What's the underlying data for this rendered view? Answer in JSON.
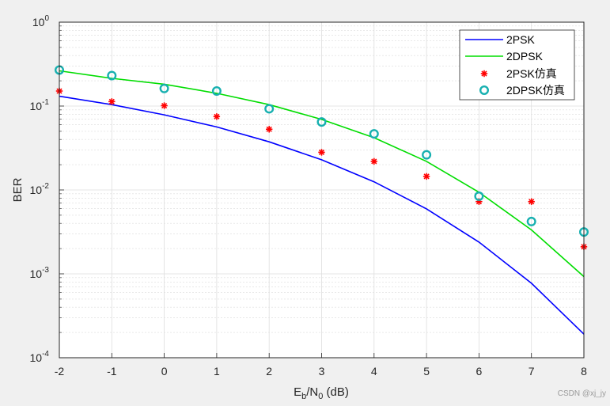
{
  "watermark": "CSDN @xj_jy",
  "chart_data": {
    "type": "line",
    "title": "",
    "xlabel": {
      "base": "E",
      "sub1": "b",
      "mid": "/N",
      "sub2": "0",
      "tail": " (dB)"
    },
    "ylabel": "BER",
    "xlim": [
      -2,
      8
    ],
    "ylim": [
      0.0001,
      1
    ],
    "yscale": "log",
    "grid": true,
    "minor_grid": true,
    "legend_position": "top-right",
    "x": [
      -2,
      -1,
      0,
      1,
      2,
      3,
      4,
      5,
      6,
      7,
      8
    ],
    "xticks": [
      "-2",
      "-1",
      "0",
      "1",
      "2",
      "3",
      "4",
      "5",
      "6",
      "7",
      "8"
    ],
    "yticks": [
      {
        "value": 1,
        "base": "10",
        "exp": "0"
      },
      {
        "value": 0.1,
        "base": "10",
        "exp": "-1"
      },
      {
        "value": 0.01,
        "base": "10",
        "exp": "-2"
      },
      {
        "value": 0.001,
        "base": "10",
        "exp": "-3"
      },
      {
        "value": 0.0001,
        "base": "10",
        "exp": "-4"
      }
    ],
    "series": [
      {
        "name": "2PSK",
        "kind": "line",
        "color": "#0000ff",
        "values": [
          0.131,
          0.104,
          0.0786,
          0.0563,
          0.0375,
          0.0229,
          0.0125,
          0.00595,
          0.00239,
          0.000773,
          0.000191
        ]
      },
      {
        "name": "2DPSK",
        "kind": "line",
        "color": "#00dd00",
        "values": [
          0.263,
          0.214,
          0.182,
          0.142,
          0.104,
          0.0693,
          0.0419,
          0.0219,
          0.00939,
          0.00334,
          0.000926
        ]
      },
      {
        "name": "2PSK仿真",
        "kind": "star",
        "color": "#ff0000",
        "values": [
          0.151,
          0.113,
          0.101,
          0.0749,
          0.0529,
          0.0281,
          0.0219,
          0.0145,
          0.00726,
          0.00726,
          0.0021
        ]
      },
      {
        "name": "2DPSK仿真",
        "kind": "circle",
        "color": "#17b0b0",
        "values": [
          0.269,
          0.231,
          0.162,
          0.151,
          0.0928,
          0.0646,
          0.0466,
          0.0262,
          0.00842,
          0.0042,
          0.00315
        ]
      }
    ]
  }
}
